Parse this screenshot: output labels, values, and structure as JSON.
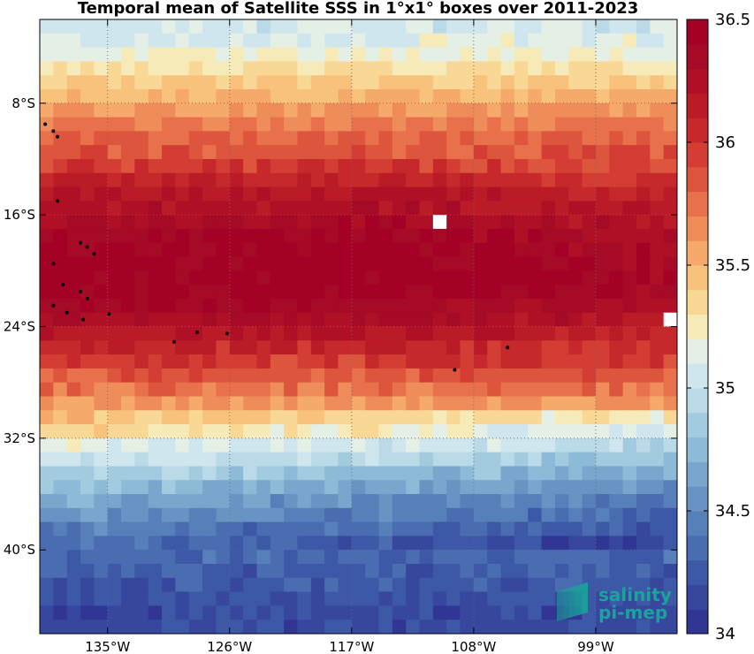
{
  "chart_data": {
    "type": "heatmap",
    "title": "Temporal mean of Satellite SSS in 1°x1° boxes over 2011-2023",
    "xlabel": "",
    "ylabel": "",
    "x_range": [
      -140,
      -93
    ],
    "y_range": [
      -46,
      -2
    ],
    "x_ticks": [
      {
        "value": -135,
        "label": "135°W"
      },
      {
        "value": -126,
        "label": "126°W"
      },
      {
        "value": -117,
        "label": "117°W"
      },
      {
        "value": -108,
        "label": "108°W"
      },
      {
        "value": -99,
        "label": "99°W"
      }
    ],
    "y_ticks": [
      {
        "value": -8,
        "label": "8°S"
      },
      {
        "value": -16,
        "label": "16°S"
      },
      {
        "value": -24,
        "label": "24°S"
      },
      {
        "value": -32,
        "label": "32°S"
      },
      {
        "value": -40,
        "label": "40°S"
      }
    ],
    "grid": true,
    "grid_style": "dotted",
    "cell_size_deg": 1,
    "colorbar": {
      "position": "right",
      "min": 34,
      "max": 36.5,
      "levels": 25,
      "ticks": [
        {
          "value": 36.5,
          "label": "36.5"
        },
        {
          "value": 36,
          "label": "36"
        },
        {
          "value": 35.5,
          "label": "35.5"
        },
        {
          "value": 35,
          "label": "35"
        },
        {
          "value": 34.5,
          "label": "34.5"
        },
        {
          "value": 34,
          "label": "34"
        }
      ],
      "colors": [
        "#313695",
        "#36479d",
        "#3d58a6",
        "#4a6cb0",
        "#577fb9",
        "#6893c3",
        "#7aa6cd",
        "#8dbad6",
        "#a3cbe0",
        "#badae8",
        "#d0e6ef",
        "#e4efe6",
        "#f6ebb8",
        "#f9d896",
        "#f8c27c",
        "#f5a96a",
        "#ef8d5a",
        "#e8704b",
        "#dd553d",
        "#d33d33",
        "#c6282c",
        "#bb1b27",
        "#b01025",
        "#a50a26",
        "#a50026"
      ]
    },
    "latitude_profile": [
      {
        "lat": -2,
        "sss": 35.05
      },
      {
        "lat": -4,
        "sss": 35.15
      },
      {
        "lat": -6,
        "sss": 35.35
      },
      {
        "lat": -8,
        "sss": 35.55
      },
      {
        "lat": -10,
        "sss": 35.75
      },
      {
        "lat": -12,
        "sss": 35.9
      },
      {
        "lat": -14,
        "sss": 36.15
      },
      {
        "lat": -16,
        "sss": 36.3
      },
      {
        "lat": -18,
        "sss": 36.42
      },
      {
        "lat": -20,
        "sss": 36.48
      },
      {
        "lat": -22,
        "sss": 36.42
      },
      {
        "lat": -24,
        "sss": 36.25
      },
      {
        "lat": -26,
        "sss": 36.02
      },
      {
        "lat": -28,
        "sss": 35.8
      },
      {
        "lat": -30,
        "sss": 35.55
      },
      {
        "lat": -32,
        "sss": 35.28
      },
      {
        "lat": -34,
        "sss": 34.98
      },
      {
        "lat": -36,
        "sss": 34.72
      },
      {
        "lat": -38,
        "sss": 34.5
      },
      {
        "lat": -40,
        "sss": 34.35
      },
      {
        "lat": -42,
        "sss": 34.25
      },
      {
        "lat": -44,
        "sss": 34.18
      },
      {
        "lat": -46,
        "sss": 34.15
      }
    ],
    "missing_cells": [
      {
        "lon": -110.5,
        "lat": -16.5
      },
      {
        "lon": -93.5,
        "lat": -23.5
      }
    ],
    "islands": [
      {
        "lon": -139.6,
        "lat": -9.5
      },
      {
        "lon": -139.0,
        "lat": -10.0
      },
      {
        "lon": -138.7,
        "lat": -10.4
      },
      {
        "lon": -138.7,
        "lat": -15.0
      },
      {
        "lon": -137.0,
        "lat": -18.0
      },
      {
        "lon": -136.5,
        "lat": -18.3
      },
      {
        "lon": -136.0,
        "lat": -18.8
      },
      {
        "lon": -139.0,
        "lat": -19.5
      },
      {
        "lon": -138.3,
        "lat": -21.0
      },
      {
        "lon": -137.0,
        "lat": -21.5
      },
      {
        "lon": -136.5,
        "lat": -22.0
      },
      {
        "lon": -139.0,
        "lat": -22.5
      },
      {
        "lon": -138.0,
        "lat": -23.0
      },
      {
        "lon": -134.9,
        "lat": -23.1
      },
      {
        "lon": -136.8,
        "lat": -23.5
      },
      {
        "lon": -130.1,
        "lat": -25.1
      },
      {
        "lon": -128.4,
        "lat": -24.4
      },
      {
        "lon": -126.2,
        "lat": -24.5
      },
      {
        "lon": -109.4,
        "lat": -27.1
      },
      {
        "lon": -105.5,
        "lat": -25.5
      }
    ]
  },
  "logo": {
    "line1": "salinity",
    "line2": "pi-mep",
    "color": "#1aa39a"
  }
}
